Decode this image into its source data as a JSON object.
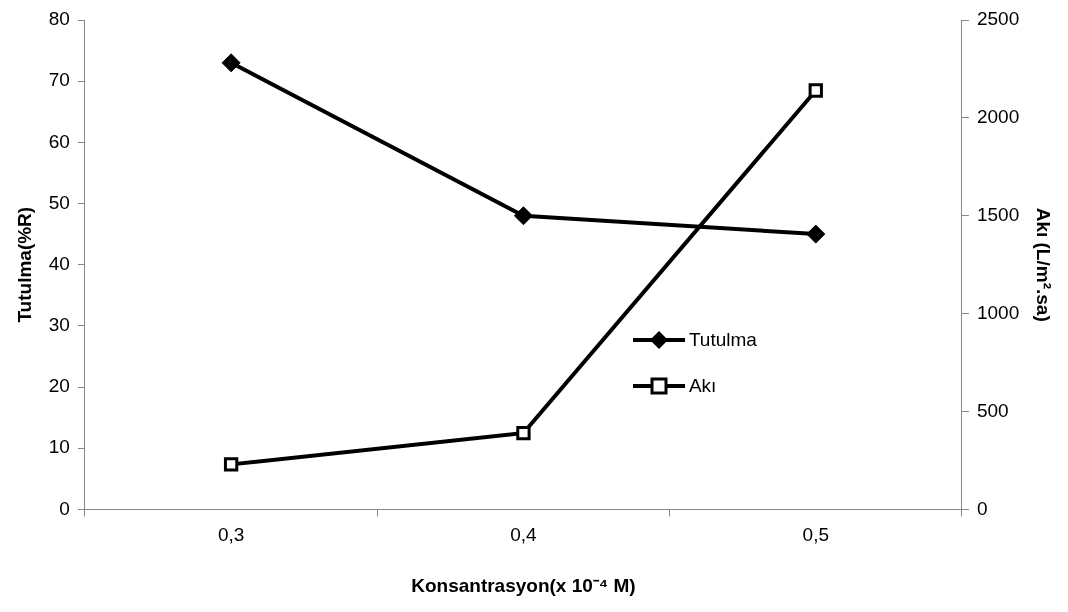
{
  "chart_data": {
    "type": "line",
    "xlabel": "Konsantrasyon(x 10⁻⁴ M)",
    "ylabel": "Tutulma(%R)",
    "y2label": "Akı (L/m².sa)",
    "categories": [
      "0,3",
      "0,4",
      "0,5"
    ],
    "series": [
      {
        "name": "Tutulma",
        "color": "#000000",
        "values": [
          73,
          48,
          45
        ],
        "marker": "diamond"
      },
      {
        "name": "Akı",
        "color": "#000000",
        "values": [
          230,
          390,
          2140
        ],
        "marker": "square",
        "axis": "y2"
      }
    ],
    "ylim": [
      0,
      80
    ],
    "yticks": [
      0,
      10,
      20,
      30,
      40,
      50,
      60,
      70,
      80
    ],
    "y2lim": [
      0,
      2500
    ],
    "y2ticks": [
      0,
      500,
      1000,
      1500,
      2000,
      2500
    ],
    "grid": false,
    "legend": "right",
    "line_style": "solid"
  }
}
